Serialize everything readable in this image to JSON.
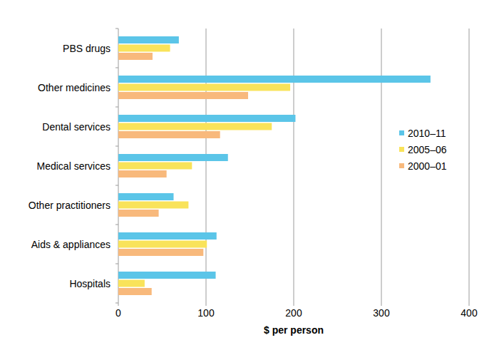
{
  "chart_data": {
    "type": "bar",
    "orientation": "horizontal",
    "x_label": "$ per person",
    "categories": [
      "PBS drugs",
      "Other medicines",
      "Dental services",
      "Medical services",
      "Other practitioners",
      "Aids & appliances",
      "Hospitals"
    ],
    "series": [
      {
        "name": "2010–11",
        "color": "#5bc5e8",
        "values": [
          69,
          356,
          202,
          125,
          63,
          112,
          111
        ]
      },
      {
        "name": "2005–06",
        "color": "#f9e35a",
        "values": [
          59,
          196,
          175,
          84,
          80,
          101,
          30
        ]
      },
      {
        "name": "2000–01",
        "color": "#f8b97c",
        "values": [
          39,
          148,
          116,
          55,
          46,
          97,
          38
        ]
      }
    ],
    "xlim": [
      0,
      400
    ],
    "xticks": [
      0,
      100,
      200,
      300,
      400
    ],
    "grid": true,
    "legend": "right"
  }
}
